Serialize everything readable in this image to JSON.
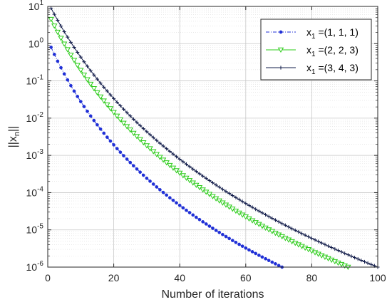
{
  "chart_data": {
    "type": "line",
    "xlabel": "Number of iterations",
    "ylabel": "||x_n||",
    "xlim": [
      0,
      100
    ],
    "ylim": [
      1e-06,
      10
    ],
    "yscale": "log",
    "x_ticks": [
      "0",
      "20",
      "40",
      "60",
      "80",
      "100"
    ],
    "y_ticks": [
      {
        "mantissa": "10",
        "exp": "1"
      },
      {
        "mantissa": "10",
        "exp": "0"
      },
      {
        "mantissa": "10",
        "exp": "-1"
      },
      {
        "mantissa": "10",
        "exp": "-2"
      },
      {
        "mantissa": "10",
        "exp": "-3"
      },
      {
        "mantissa": "10",
        "exp": "-4"
      },
      {
        "mantissa": "10",
        "exp": "-5"
      },
      {
        "mantissa": "10",
        "exp": "-6"
      }
    ],
    "grid": true,
    "minor_grid": true,
    "legend_position": "top-right",
    "series": [
      {
        "name": "x1 =(1, 1, 1)",
        "legend_prefix": "x",
        "legend_sub": "1",
        "legend_suffix": " =(1, 1, 1)",
        "color": "#1f2fd6",
        "line_style": "dashdot",
        "marker": "dot",
        "x_start": 1,
        "x_end": 71,
        "y_start": 0.8,
        "y_end": 1e-06,
        "shape": 3.5
      },
      {
        "name": "x1 =(2, 2, 3)",
        "legend_prefix": "x",
        "legend_sub": "1",
        "legend_suffix": " =(2, 2, 3)",
        "color": "#2ccc1a",
        "line_style": "solid",
        "marker": "triangle-down",
        "x_start": 1,
        "x_end": 91,
        "y_start": 4.5,
        "y_end": 1e-06,
        "shape": 3.8
      },
      {
        "name": "x1 =(3, 4, 3)",
        "legend_prefix": "x",
        "legend_sub": "1",
        "legend_suffix": " =(3, 4, 3)",
        "color": "#121c4a",
        "line_style": "solid",
        "marker": "plus",
        "x_start": 1,
        "x_end": 100,
        "y_start": 9,
        "y_end": 1e-06,
        "shape": 3.8
      }
    ]
  }
}
